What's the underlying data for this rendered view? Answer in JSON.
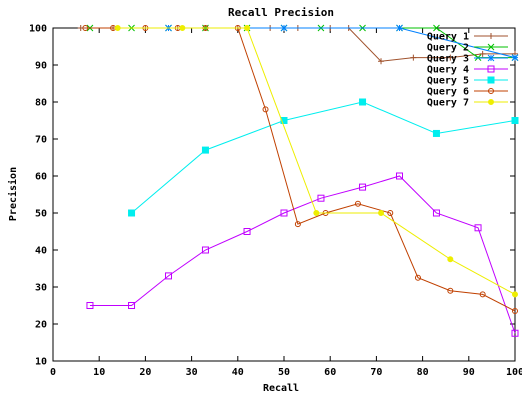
{
  "chart_data": {
    "type": "line",
    "title": "Recall Precision",
    "xlabel": "Recall",
    "ylabel": "Precision",
    "xlim": [
      0,
      100
    ],
    "ylim": [
      10,
      100
    ],
    "xticks": [
      0,
      10,
      20,
      30,
      40,
      50,
      60,
      70,
      80,
      90,
      100
    ],
    "yticks": [
      10,
      20,
      30,
      40,
      50,
      60,
      70,
      80,
      90,
      100
    ],
    "legend_position": "top-right",
    "grid": false,
    "series": [
      {
        "name": "Query 1",
        "color": "#a0522d",
        "marker": "plus",
        "x": [
          6,
          13,
          20,
          27,
          33,
          40,
          47,
          53,
          60,
          64,
          71,
          78,
          86,
          93,
          100
        ],
        "y": [
          100,
          100,
          100,
          100,
          100,
          100,
          100,
          100,
          100,
          100,
          91,
          92,
          92,
          93,
          93
        ]
      },
      {
        "name": "Query 2",
        "color": "#00c000",
        "marker": "cross",
        "x": [
          8,
          17,
          25,
          33,
          42,
          50,
          58,
          67,
          75,
          83,
          92,
          100
        ],
        "y": [
          100,
          100,
          100,
          100,
          100,
          100,
          100,
          100,
          100,
          100,
          92,
          92
        ]
      },
      {
        "name": "Query 3",
        "color": "#0080ff",
        "marker": "star",
        "x": [
          25,
          50,
          75,
          100
        ],
        "y": [
          100,
          100,
          100,
          92
        ]
      },
      {
        "name": "Query 4",
        "color": "#c000ff",
        "marker": "square-open",
        "x": [
          8,
          17,
          25,
          33,
          42,
          50,
          58,
          67,
          75,
          83,
          92,
          100
        ],
        "y": [
          25,
          25,
          33,
          40,
          45,
          50,
          54,
          57,
          60,
          50,
          46,
          17.5
        ]
      },
      {
        "name": "Query 5",
        "color": "#00eeee",
        "marker": "square-filled",
        "x": [
          17,
          33,
          50,
          67,
          83,
          100
        ],
        "y": [
          50,
          67,
          75,
          80,
          71.5,
          75
        ]
      },
      {
        "name": "Query 6",
        "color": "#c04000",
        "marker": "circle-open",
        "x": [
          7,
          13,
          20,
          27,
          33,
          40,
          46,
          53,
          59,
          66,
          73,
          79,
          86,
          93,
          100
        ],
        "y": [
          100,
          100,
          100,
          100,
          100,
          100,
          78,
          47,
          50,
          52.5,
          50,
          32.5,
          29,
          28,
          23.5
        ]
      },
      {
        "name": "Query 7",
        "color": "#eeee00",
        "marker": "circle-filled",
        "x": [
          14,
          28,
          42,
          57,
          71,
          86,
          100
        ],
        "y": [
          100,
          100,
          100,
          50,
          50,
          37.5,
          28
        ]
      }
    ]
  }
}
